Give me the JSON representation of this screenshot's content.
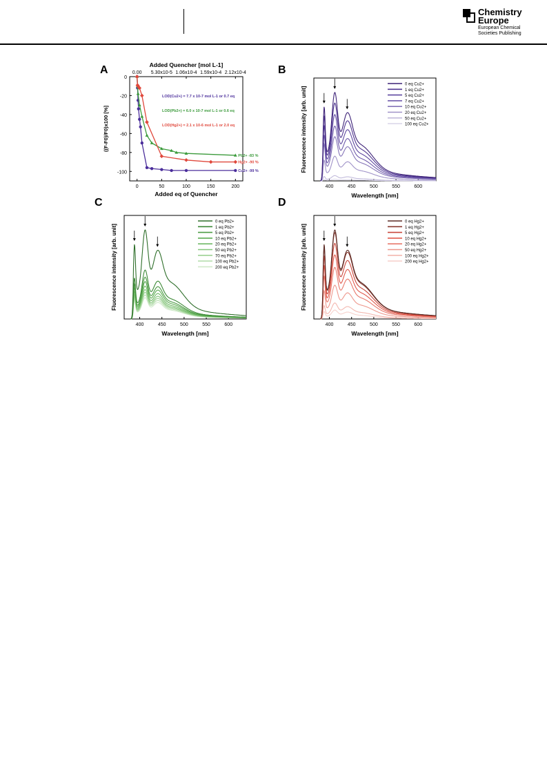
{
  "header": {
    "brand_line1": "Chemistry",
    "brand_line2": "Europe",
    "brand_line3": "European Chemical",
    "brand_line4": "Societies Publishing"
  },
  "chart_data": [
    {
      "panel": "A",
      "type": "scatter",
      "xlabel": "Added eq of Quencher",
      "ylabel": "((F-F0)/F0)x100 [%]",
      "top_xlabel": "Added Quencher [mol L-1]",
      "top_ticks": [
        "0.00",
        "5.30x10-5",
        "1.06x10-4",
        "1.59x10-4",
        "2.12x10-4"
      ],
      "top_tick_eq": [
        0,
        50,
        100,
        150,
        200
      ],
      "xlim": [
        -15,
        215
      ],
      "ylim": [
        -110,
        0
      ],
      "xticks": [
        0,
        50,
        100,
        150,
        200
      ],
      "yticks": [
        0,
        -20,
        -40,
        -60,
        -80,
        -100
      ],
      "series": [
        {
          "name": "Cu2+",
          "color": "#4b2e9b",
          "end_label": "Cu2+ -99 %",
          "x": [
            0,
            1,
            2,
            3,
            5,
            7,
            10,
            20,
            30,
            50,
            70,
            100,
            200
          ],
          "y": [
            0,
            -12,
            -25,
            -34,
            -45,
            -53,
            -70,
            -96,
            -97,
            -98,
            -99,
            -99,
            -99
          ]
        },
        {
          "name": "Pb2+",
          "color": "#3b9a3b",
          "end_label": "Pb2+ -83 %",
          "x": [
            0,
            1,
            2,
            5,
            10,
            20,
            30,
            50,
            70,
            80,
            100,
            200
          ],
          "y": [
            0,
            -10,
            -18,
            -30,
            -42,
            -62,
            -70,
            -76,
            -78,
            -80,
            -81,
            -83
          ]
        },
        {
          "name": "Hg2+",
          "color": "#e0483c",
          "end_label": "Hg2+ -90 %",
          "x": [
            0,
            1,
            2,
            5,
            10,
            20,
            50,
            100,
            150,
            200
          ],
          "y": [
            0,
            -9,
            -10,
            -12,
            -20,
            -48,
            -84,
            -88,
            -90,
            -90
          ]
        }
      ],
      "annotations": [
        {
          "text": "LOD(Cu2+) = 7.7 x 10-7 mol L-1 or 0.7 eq",
          "color": "#4b2e9b"
        },
        {
          "text": "LOD(Pb2+) = 6.0 x 10-7 mol L-1 or 0.6 eq",
          "color": "#3b9a3b"
        },
        {
          "text": "LOD(Hg2+) = 2.1 x 10-6 mol L-1 or 2.0 eq",
          "color": "#e0483c"
        }
      ]
    },
    {
      "panel": "B",
      "type": "line",
      "xlabel": "Wavelength [nm]",
      "ylabel": "Fluorescence intensity [arb. unit]",
      "xlim": [
        365,
        640
      ],
      "xticks": [
        400,
        450,
        500,
        550,
        600
      ],
      "arrows_at": [
        388,
        412,
        440
      ],
      "legend": [
        "0 eq Cu2+",
        "1 eq Cu2+",
        "5 eq Cu2+",
        "7 eq Cu2+",
        "10 eq Cu2+",
        "20 eq Cu2+",
        "50 eq Cu2+",
        "100 eq Cu2+"
      ],
      "relative_intensity": [
        1.0,
        0.88,
        0.75,
        0.62,
        0.5,
        0.28,
        0.06,
        0.02
      ],
      "colors": [
        "#3d2277",
        "#4f3590",
        "#5e47a0",
        "#6f5aab",
        "#8574b8",
        "#9f92c8",
        "#c2bbdc",
        "#dcd8ea"
      ]
    },
    {
      "panel": "C",
      "type": "line",
      "xlabel": "Wavelength [nm]",
      "ylabel": "Fluorescence intensity [arb. unit]",
      "xlim": [
        365,
        640
      ],
      "xticks": [
        400,
        450,
        500,
        550,
        600
      ],
      "arrows_at": [
        388,
        412,
        440
      ],
      "legend": [
        "0 eq Pb2+",
        "1 eq Pb2+",
        "5 eq Pb2+",
        "10 eq Pb2+",
        "20 eq Pb2+",
        "50 eq Pb2+",
        "70 eq Pb2+",
        "100 eq Pb2+",
        "200 eq Pb2+"
      ],
      "relative_intensity": [
        1.0,
        0.55,
        0.47,
        0.42,
        0.37,
        0.33,
        0.3,
        0.27,
        0.24
      ],
      "colors": [
        "#2e6e2a",
        "#3d8a37",
        "#4c9c44",
        "#5cab52",
        "#6eb864",
        "#84c57a",
        "#9cd193",
        "#b6ddae",
        "#cfe9c9"
      ]
    },
    {
      "panel": "D",
      "type": "line",
      "xlabel": "Wavelength [nm]",
      "ylabel": "Fluorescence intensity [arb. unit]",
      "xlim": [
        365,
        640
      ],
      "xticks": [
        400,
        450,
        500,
        550,
        600
      ],
      "arrows_at": [
        388,
        412,
        440
      ],
      "legend": [
        "0 eq Hg2+",
        "1 eq Hg2+",
        "5 eq Hg2+",
        "10 eq Hg2+",
        "20 eq Hg2+",
        "50 eq Hg2+",
        "100 eq Hg2+",
        "200 eq Hg2+"
      ],
      "relative_intensity": [
        1.0,
        0.97,
        0.85,
        0.72,
        0.58,
        0.38,
        0.18,
        0.1
      ],
      "colors": [
        "#5a2a24",
        "#8a3a30",
        "#c9463a",
        "#e05a4c",
        "#e8786b",
        "#ee978c",
        "#f3b7af",
        "#f7d2cd"
      ]
    }
  ]
}
